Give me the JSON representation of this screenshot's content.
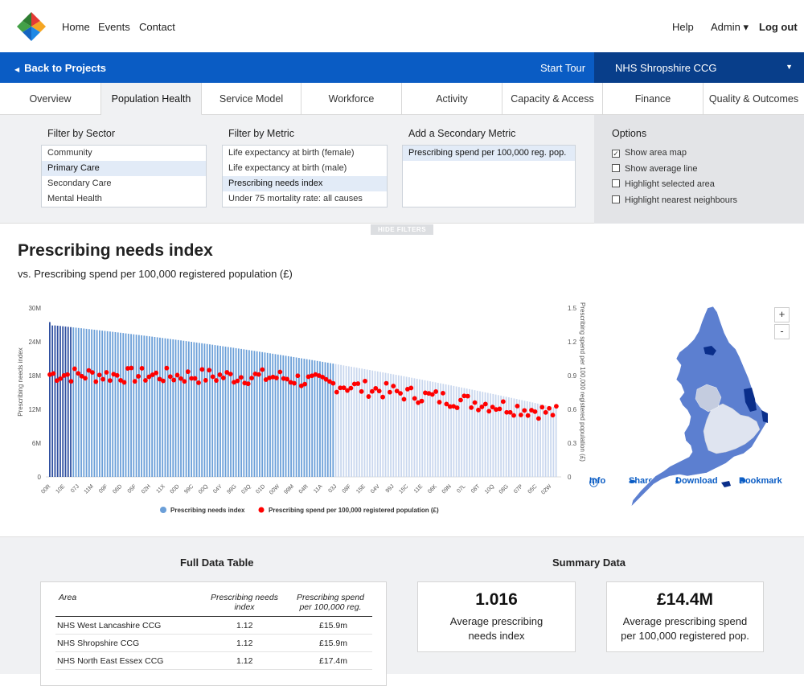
{
  "nav": {
    "links": [
      "Home",
      "Events",
      "Contact"
    ],
    "right": {
      "help": "Help",
      "admin": "Admin ▾",
      "logout": "Log out"
    }
  },
  "bar": {
    "back": "Back to Projects",
    "tour": "Start Tour",
    "ccg": "NHS Shropshire CCG"
  },
  "tabs": [
    {
      "label": "Overview"
    },
    {
      "label": "Population Health",
      "active": true
    },
    {
      "label": "Service Model"
    },
    {
      "label": "Workforce"
    },
    {
      "label": "Activity"
    },
    {
      "label": "Capacity & Access"
    },
    {
      "label": "Finance"
    },
    {
      "label": "Quality & Outcomes"
    }
  ],
  "filters": {
    "sector": {
      "heading": "Filter by Sector",
      "items": [
        "Community",
        "Primary Care",
        "Secondary Care",
        "Mental Health"
      ],
      "selected": 1
    },
    "metric": {
      "heading": "Filter by Metric",
      "items": [
        "Life expectancy at birth (female)",
        "Life expectancy at birth (male)",
        "Prescribing needs index",
        "Under 75 mortality rate: all causes"
      ],
      "selected": 2
    },
    "secondary": {
      "heading": "Add a Secondary Metric",
      "items": [
        "Prescribing spend per 100,000 reg. pop."
      ],
      "selected": 0
    },
    "options": {
      "heading": "Options",
      "items": [
        {
          "label": "Show area map",
          "checked": true
        },
        {
          "label": "Show average line",
          "checked": false
        },
        {
          "label": "Highlight selected area",
          "checked": false
        },
        {
          "label": "Highlight nearest neighbours",
          "checked": false
        }
      ]
    },
    "hide_label": "HIDE FILTERS"
  },
  "chart_section": {
    "title": "Prescribing needs index",
    "subtitle": "vs. Prescribing spend per 100,000 registered population (£)",
    "actions": {
      "info": "Info",
      "share": "Share",
      "download": "Download",
      "bookmark": "Bookmark"
    },
    "zoom_in": "+",
    "zoom_out": "-"
  },
  "chart_data": {
    "type": "bar",
    "left_ticks": [
      "30M",
      "24M",
      "18M",
      "12M",
      "6M",
      "0"
    ],
    "right_ticks": [
      "1.5",
      "1.2",
      "0.9",
      "0.6",
      "0.3",
      "0"
    ],
    "ylabel": "Prescribing needs index",
    "y2label": "Prescribing spend per 100,000 registered population (£)",
    "ylim": [
      0,
      30000000
    ],
    "y2lim": [
      0,
      1.5
    ],
    "x_tick_labels": [
      "00R",
      "10E",
      "07J",
      "11M",
      "09F",
      "06D",
      "05F",
      "02H",
      "11X",
      "00D",
      "99C",
      "00Q",
      "04Y",
      "99G",
      "03Q",
      "01D",
      "00W",
      "99M",
      "04R",
      "11A",
      "03J",
      "08F",
      "15E",
      "04V",
      "99J",
      "15C",
      "11E",
      "06K",
      "09N",
      "07L",
      "08T",
      "10Q",
      "08G",
      "07P",
      "05C",
      "02W"
    ],
    "bar_count": 194,
    "series": [
      {
        "name": "Prescribing needs index",
        "color": "#6b9fd8"
      },
      {
        "name": "Prescribing spend per 100,000 registered population (£)",
        "color": "#ff0000"
      }
    ],
    "legend": "bottom"
  },
  "table": {
    "heading": "Full Data Table",
    "columns": [
      "Area",
      "Prescribing needs index",
      "Prescribing spend per 100,000 reg."
    ],
    "rows": [
      {
        "area": "NHS West Lancashire CCG",
        "index": "1.12",
        "spend": "£15.9m"
      },
      {
        "area": "NHS Shropshire CCG",
        "index": "1.12",
        "spend": "£15.9m"
      },
      {
        "area": "NHS North East Essex CCG",
        "index": "1.12",
        "spend": "£17.4m"
      }
    ]
  },
  "summary": {
    "heading": "Summary Data",
    "cards": [
      {
        "value": "1.016",
        "label": "Average prescribing needs index"
      },
      {
        "value": "£14.4M",
        "label": "Average prescribing spend per 100,000 registered pop."
      }
    ]
  }
}
